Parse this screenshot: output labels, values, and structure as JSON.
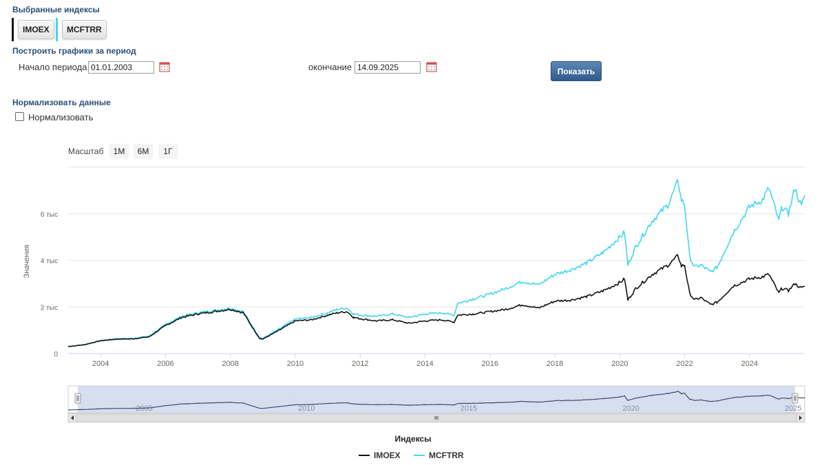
{
  "selected_indexes": {
    "title": "Выбранные индексы",
    "items": [
      {
        "label": "IMOEX",
        "color": "#111111"
      },
      {
        "label": "MCFTRR",
        "color": "#3fd7ee"
      }
    ]
  },
  "period": {
    "title": "Построить графики за период",
    "start_label": "Начало периода",
    "start_value": "01.01.2003",
    "end_label": "окончание",
    "end_value": "14.09.2025",
    "show_button": "Показать"
  },
  "normalize": {
    "title": "Нормализовать данные",
    "checkbox_label": "Нормализовать",
    "checked": false
  },
  "zoom": {
    "label": "Масштаб",
    "buttons": [
      "1М",
      "6М",
      "1Г"
    ]
  },
  "legend": {
    "title": "Индексы"
  },
  "chart_data": {
    "type": "line",
    "ylabel": "Значения",
    "ylim": [
      0,
      8000
    ],
    "yticks": [
      {
        "value": 0,
        "label": "0"
      },
      {
        "value": 2000,
        "label": "2 тыс"
      },
      {
        "value": 4000,
        "label": "4 тыс"
      },
      {
        "value": 6000,
        "label": "6 тыс"
      }
    ],
    "xlim": [
      2003.0,
      2025.7
    ],
    "xticks": [
      "2004",
      "2006",
      "2008",
      "2010",
      "2012",
      "2014",
      "2016",
      "2018",
      "2020",
      "2022",
      "2024"
    ],
    "navigator_ticks": [
      "2005",
      "2010",
      "2015",
      "2020",
      "2025"
    ],
    "series": [
      {
        "name": "IMOEX",
        "color": "#111111",
        "x": [
          2003.0,
          2003.5,
          2004.0,
          2004.5,
          2005.0,
          2005.5,
          2006.0,
          2006.5,
          2007.0,
          2007.5,
          2008.0,
          2008.4,
          2008.6,
          2008.9,
          2009.0,
          2009.5,
          2010.0,
          2010.5,
          2011.0,
          2011.3,
          2011.6,
          2011.8,
          2012.0,
          2012.5,
          2013.0,
          2013.5,
          2014.0,
          2014.5,
          2014.9,
          2015.0,
          2015.5,
          2016.0,
          2016.5,
          2017.0,
          2017.5,
          2018.0,
          2018.5,
          2019.0,
          2019.5,
          2020.0,
          2020.15,
          2020.25,
          2020.5,
          2021.0,
          2021.5,
          2021.8,
          2021.9,
          2022.0,
          2022.15,
          2022.3,
          2022.5,
          2022.8,
          2023.0,
          2023.5,
          2024.0,
          2024.4,
          2024.6,
          2024.9,
          2025.0,
          2025.2,
          2025.4,
          2025.6,
          2025.7
        ],
        "y": [
          300,
          380,
          550,
          620,
          630,
          720,
          1200,
          1550,
          1700,
          1800,
          1900,
          1750,
          1300,
          650,
          620,
          1000,
          1400,
          1450,
          1650,
          1750,
          1800,
          1550,
          1500,
          1400,
          1450,
          1300,
          1400,
          1450,
          1350,
          1650,
          1700,
          1800,
          1900,
          2100,
          1950,
          2250,
          2300,
          2450,
          2700,
          3050,
          3200,
          2300,
          2800,
          3400,
          3800,
          4200,
          3750,
          3800,
          2600,
          2300,
          2400,
          2100,
          2200,
          2900,
          3200,
          3300,
          3400,
          2600,
          2800,
          2700,
          3000,
          2800,
          2900
        ]
      },
      {
        "name": "MCFTRR",
        "color": "#3fd7ee",
        "x": [
          2003.0,
          2003.5,
          2004.0,
          2004.5,
          2005.0,
          2005.5,
          2006.0,
          2006.5,
          2007.0,
          2007.5,
          2008.0,
          2008.4,
          2008.6,
          2008.9,
          2009.0,
          2009.5,
          2010.0,
          2010.5,
          2011.0,
          2011.3,
          2011.6,
          2011.8,
          2012.0,
          2012.5,
          2013.0,
          2013.5,
          2014.0,
          2014.5,
          2014.9,
          2015.0,
          2015.5,
          2016.0,
          2016.5,
          2017.0,
          2017.5,
          2018.0,
          2018.5,
          2019.0,
          2019.5,
          2020.0,
          2020.15,
          2020.25,
          2020.5,
          2021.0,
          2021.5,
          2021.8,
          2021.9,
          2022.0,
          2022.15,
          2022.3,
          2022.5,
          2022.8,
          2023.0,
          2023.5,
          2024.0,
          2024.4,
          2024.6,
          2024.9,
          2025.0,
          2025.2,
          2025.4,
          2025.6,
          2025.7
        ],
        "y": [
          300,
          380,
          560,
          640,
          650,
          750,
          1250,
          1600,
          1750,
          1850,
          1950,
          1800,
          1350,
          680,
          650,
          1050,
          1480,
          1550,
          1750,
          1900,
          1950,
          1700,
          1650,
          1600,
          1700,
          1550,
          1700,
          1750,
          1650,
          2150,
          2350,
          2550,
          2800,
          3100,
          2950,
          3400,
          3600,
          3900,
          4350,
          5000,
          5200,
          3800,
          4600,
          5700,
          6400,
          7400,
          6600,
          6400,
          4200,
          3700,
          3800,
          3500,
          3700,
          5200,
          6300,
          6600,
          7100,
          5700,
          6300,
          6000,
          7100,
          6300,
          6800
        ]
      }
    ]
  }
}
